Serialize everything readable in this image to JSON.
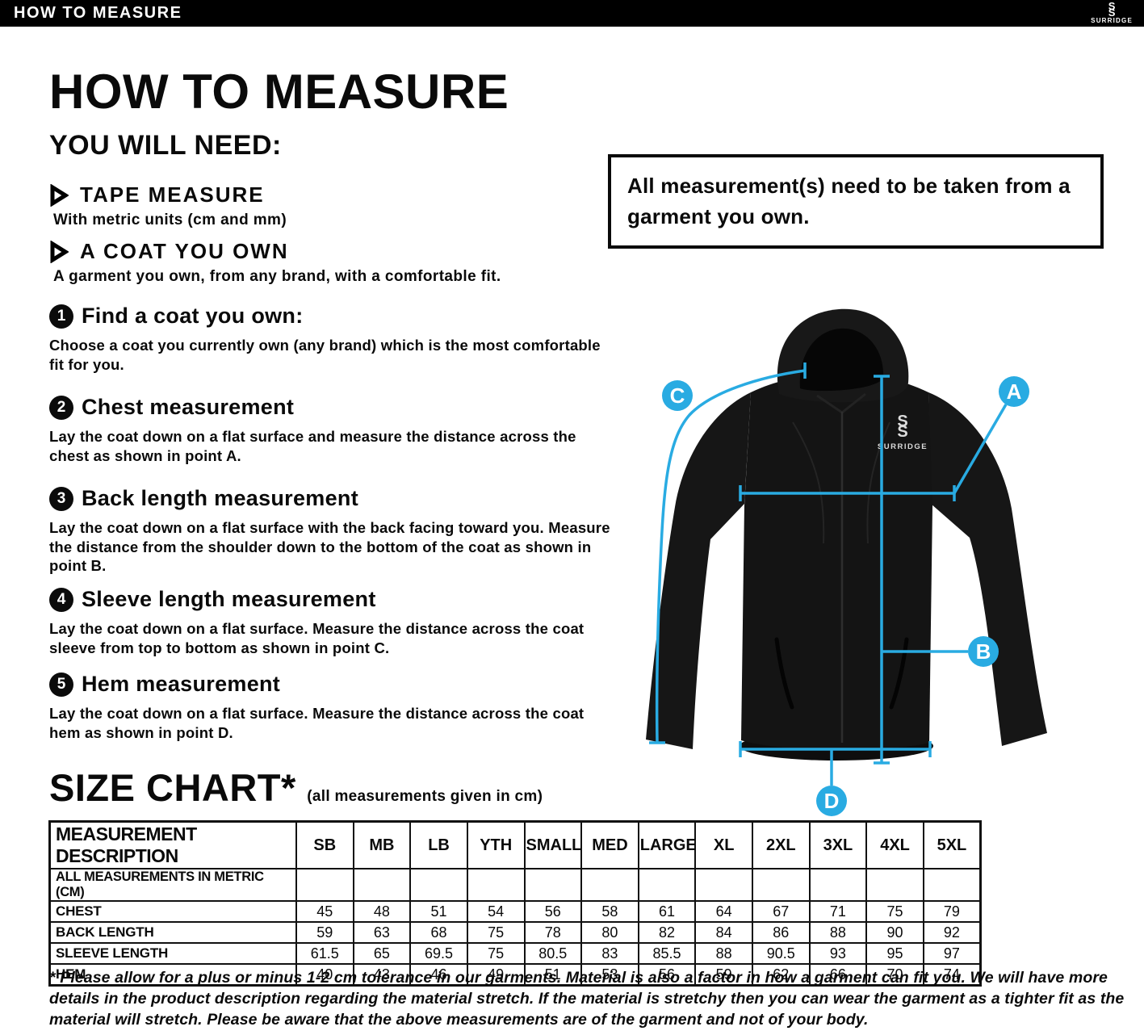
{
  "colors": {
    "accent": "#29ABE2",
    "bar_bg": "#000000",
    "jacket": "#141414"
  },
  "top_bar": {
    "title": "HOW TO MEASURE",
    "brand": "SURRIDGE"
  },
  "intro": {
    "heading": "HOW TO MEASURE",
    "subheading": "YOU WILL NEED:",
    "needs": [
      {
        "label": "TAPE MEASURE",
        "description": "With metric units (cm and mm)"
      },
      {
        "label": "A COAT YOU OWN",
        "description": "A garment you own, from any brand, with a comfortable fit."
      }
    ]
  },
  "note_box": {
    "text": "All measurement(s) need to be taken from a garment you own."
  },
  "steps": [
    {
      "number": "1",
      "title": "Find a coat you own:",
      "description": "Choose a coat you currently own (any brand) which is the most comfortable fit for you."
    },
    {
      "number": "2",
      "title": "Chest measurement",
      "description": "Lay the coat down on a flat surface and measure the distance across the chest as shown in point A."
    },
    {
      "number": "3",
      "title": "Back length measurement",
      "description": "Lay the coat down on a flat surface with the back facing toward you. Measure the distance from the shoulder down to the bottom of the coat as shown in point B."
    },
    {
      "number": "4",
      "title": "Sleeve length measurement",
      "description": "Lay the coat down on a flat surface. Measure the distance across the coat sleeve from top to bottom as shown in point C."
    },
    {
      "number": "5",
      "title": "Hem measurement",
      "description": "Lay the coat down on a flat surface. Measure the distance across the coat hem as shown in point D."
    }
  ],
  "diagram": {
    "jacket_brand": "SURRIDGE",
    "marker_a": "A",
    "marker_b": "B",
    "marker_c": "C",
    "marker_d": "D"
  },
  "size_chart": {
    "heading": "SIZE CHART*",
    "subheading": "(all measurements given in cm)",
    "header_col": "MEASUREMENT DESCRIPTION",
    "sizes": [
      "SB",
      "MB",
      "LB",
      "YTH",
      "SMALL",
      "MED",
      "LARGE",
      "XL",
      "2XL",
      "3XL",
      "4XL",
      "5XL"
    ],
    "metric_note": "ALL MEASUREMENTS IN METRIC (CM)",
    "rows": [
      {
        "label": "CHEST",
        "values": [
          "45",
          "48",
          "51",
          "54",
          "56",
          "58",
          "61",
          "64",
          "67",
          "71",
          "75",
          "79"
        ]
      },
      {
        "label": "BACK LENGTH",
        "values": [
          "59",
          "63",
          "68",
          "75",
          "78",
          "80",
          "82",
          "84",
          "86",
          "88",
          "90",
          "92"
        ]
      },
      {
        "label": "SLEEVE LENGTH",
        "values": [
          "61.5",
          "65",
          "69.5",
          "75",
          "80.5",
          "83",
          "85.5",
          "88",
          "90.5",
          "93",
          "95",
          "97"
        ]
      },
      {
        "label": "HEM",
        "values": [
          "40",
          "43",
          "46",
          "49",
          "51",
          "53",
          "56",
          "59",
          "62",
          "66",
          "70",
          "74"
        ]
      }
    ]
  },
  "footer": {
    "disclaimer": "* Please allow for a plus or minus 1-2 cm tolerance in our garments. Material is also a factor in how a garment can fit you. We will have more details in the product description regarding the material stretch.  If the material is stretchy then you can wear the garment as a tighter fit as the material will stretch.  Please be aware that the above measurements are of the garment and not of your body."
  }
}
